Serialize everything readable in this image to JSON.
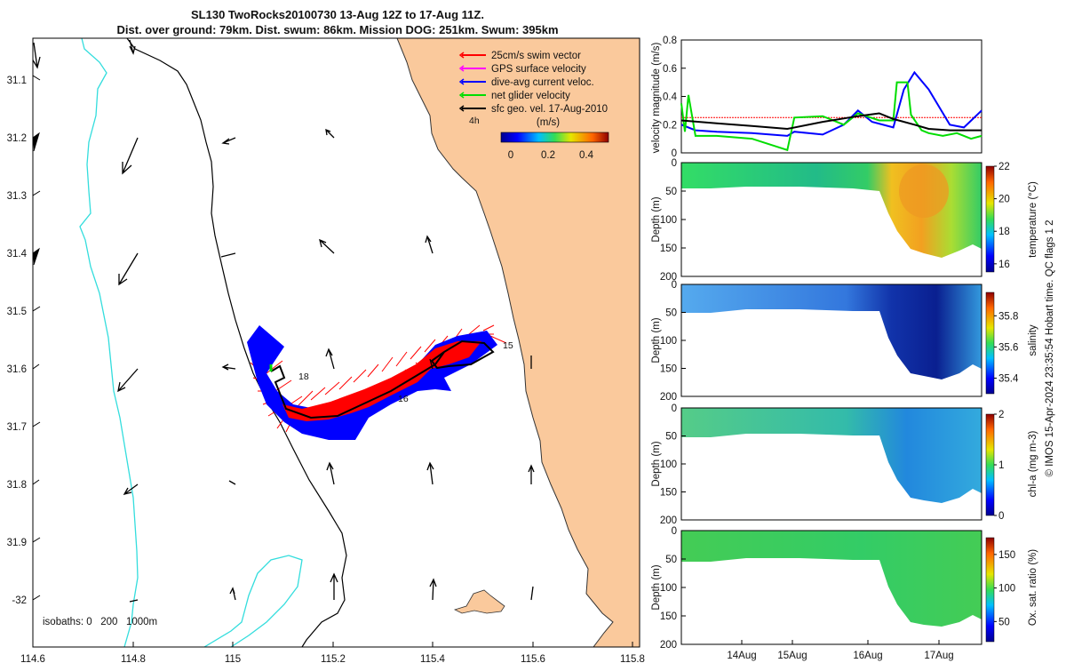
{
  "title": {
    "line1": "SL130 TwoRocks20100730 13-Aug 12Z to 17-Aug 11Z.",
    "line2": "Dist. over ground: 79km. Dist. swum: 86km. Mission DOG: 251km. Swum: 395km"
  },
  "colors": {
    "land": "#fac99c",
    "coast": "#333333",
    "isobath200": "#000000",
    "isobath1000": "#33dddd",
    "swim_vector": "#ff0000",
    "gps_surface_velocity": "#ff00ff",
    "current": "#0000ff",
    "net_glider": "#00dd00",
    "geostrophic": "#000000"
  },
  "map": {
    "x_ticks": [
      "114.6",
      "114.8",
      "115",
      "115.2",
      "115.4",
      "115.6",
      "115.8"
    ],
    "y_ticks": [
      "31.1",
      "31.2",
      "31.3",
      "31.4",
      "31.5",
      "31.6",
      "31.7",
      "31.8",
      "31.9",
      "-32"
    ],
    "legend": [
      {
        "label": "25cm/s swim vector",
        "color": "#ff0000"
      },
      {
        "label": "GPS surface velocity",
        "color": "#ff00ff"
      },
      {
        "label": "dive-avg current veloc.",
        "color": "#0000ff"
      },
      {
        "label": "net glider velocity",
        "color": "#00dd00"
      },
      {
        "label": "sfc geo. vel. 17-Aug-2010",
        "color": "#000000"
      }
    ],
    "time_label": "4h",
    "colorbar_title": "(m/s)",
    "colorbar_ticks": [
      "0",
      "0.2",
      "0.4"
    ],
    "isobaths_label": "isobaths: 0   200   1000m",
    "track_day_labels": [
      "18",
      "16",
      "15"
    ]
  },
  "chart_data": [
    {
      "type": "line",
      "title": "",
      "xlabel": "",
      "ylabel": "velocity magnitude (m/s)",
      "ylim": [
        0,
        0.8
      ],
      "y_ticks": [
        "0",
        "0.2",
        "0.4",
        "0.6",
        "0.8"
      ],
      "x_days": [
        13.5,
        17.75
      ],
      "series": [
        {
          "name": "25cm/s swim vector",
          "color": "#ff0000",
          "x": [
            13.5,
            17.75
          ],
          "values": [
            0.25,
            0.25
          ]
        },
        {
          "name": "dive-avg current veloc.",
          "color": "#0000ff",
          "x": [
            13.5,
            13.7,
            14.0,
            14.5,
            15.0,
            15.1,
            15.5,
            15.8,
            16.0,
            16.2,
            16.5,
            16.65,
            16.8,
            17.0,
            17.3,
            17.5,
            17.75
          ],
          "values": [
            0.2,
            0.16,
            0.15,
            0.14,
            0.12,
            0.15,
            0.13,
            0.2,
            0.3,
            0.22,
            0.18,
            0.45,
            0.57,
            0.45,
            0.2,
            0.18,
            0.3
          ]
        },
        {
          "name": "net glider velocity",
          "color": "#00dd00",
          "x": [
            13.5,
            13.55,
            13.6,
            13.7,
            14.0,
            14.5,
            15.0,
            15.1,
            15.5,
            15.8,
            16.0,
            16.3,
            16.5,
            16.55,
            16.7,
            16.75,
            16.9,
            17.0,
            17.2,
            17.4,
            17.6,
            17.75
          ],
          "values": [
            0.35,
            0.15,
            0.41,
            0.12,
            0.12,
            0.1,
            0.02,
            0.25,
            0.26,
            0.2,
            0.28,
            0.23,
            0.23,
            0.5,
            0.5,
            0.27,
            0.16,
            0.14,
            0.12,
            0.14,
            0.1,
            0.12
          ]
        },
        {
          "name": "sfc geo. vel. 17-Aug-2010",
          "color": "#000000",
          "x": [
            13.5,
            14.0,
            14.5,
            15.0,
            15.5,
            16.0,
            16.3,
            16.5,
            16.8,
            17.0,
            17.3,
            17.75
          ],
          "values": [
            0.23,
            0.21,
            0.19,
            0.17,
            0.22,
            0.26,
            0.28,
            0.24,
            0.2,
            0.17,
            0.16,
            0.16
          ]
        }
      ]
    },
    {
      "type": "heatmap",
      "ylabel": "Depth (m)",
      "colorbar_label": "temperature (°C)",
      "y_ticks": [
        "0",
        "50",
        "100",
        "150",
        "200"
      ],
      "colorbar_ticks": [
        "16",
        "18",
        "20",
        "22"
      ]
    },
    {
      "type": "heatmap",
      "ylabel": "Depth (m)",
      "colorbar_label": "salinity",
      "y_ticks": [
        "0",
        "50",
        "100",
        "150",
        "200"
      ],
      "colorbar_ticks": [
        "35.4",
        "35.6",
        "35.8"
      ]
    },
    {
      "type": "heatmap",
      "ylabel": "Depth (m)",
      "colorbar_label": "chl-a (mg m-3)",
      "y_ticks": [
        "0",
        "50",
        "100",
        "150",
        "200"
      ],
      "colorbar_ticks": [
        "0",
        "1",
        "2"
      ]
    },
    {
      "type": "heatmap",
      "ylabel": "Depth (m)",
      "colorbar_label": "Ox. sat. ratio (%)",
      "y_ticks": [
        "0",
        "50",
        "100",
        "150",
        "200"
      ],
      "colorbar_ticks": [
        "50",
        "100",
        "150"
      ]
    }
  ],
  "time_axis_labels": [
    "14Aug",
    "15Aug",
    "16Aug",
    "17Aug"
  ],
  "footer": "© IMOS 15-Apr-2024 23:35:54 Hobart time. QC flags 1  2"
}
